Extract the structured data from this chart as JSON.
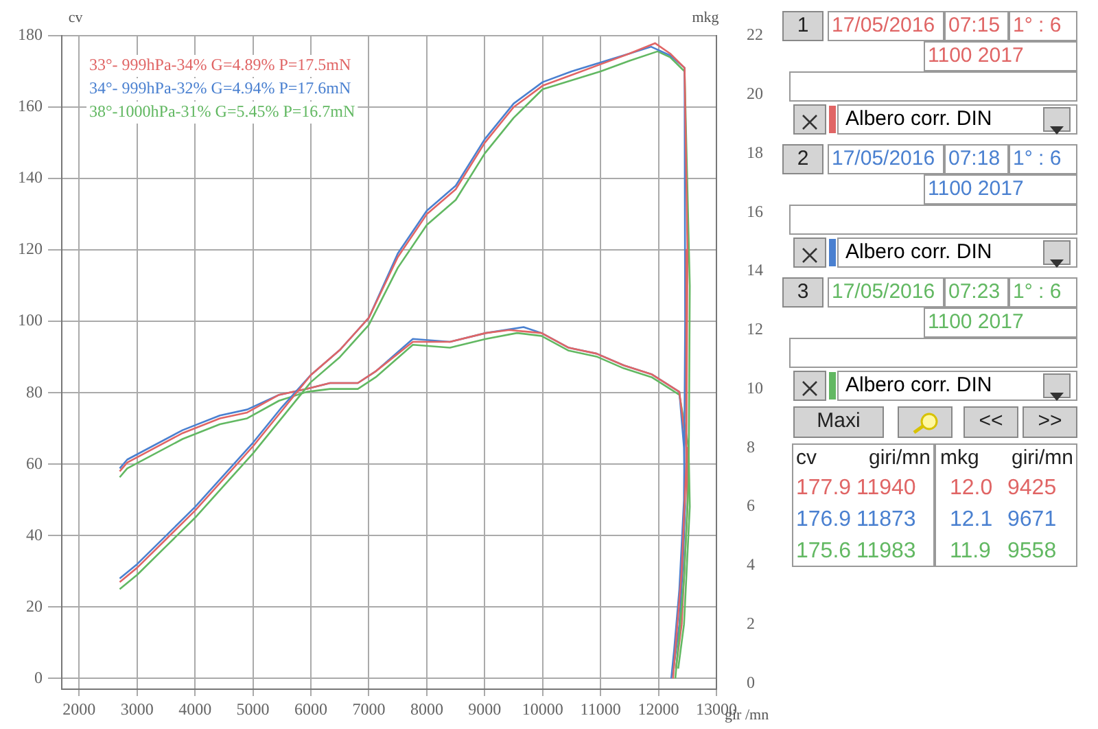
{
  "chart_data": {
    "type": "line",
    "xlabel": "gir /mn",
    "ylabel": "cv",
    "y2label": "mkg",
    "xlim": [
      1700,
      13000
    ],
    "xticks": [
      2000,
      3000,
      4000,
      5000,
      6000,
      7000,
      8000,
      9000,
      10000,
      11000,
      12000,
      13000
    ],
    "ylim": [
      -3,
      180
    ],
    "yticks": [
      0,
      20,
      40,
      60,
      80,
      100,
      120,
      140,
      160,
      180
    ],
    "y2lim": [
      -0.2,
      22
    ],
    "y2ticks": [
      0,
      2,
      4,
      6,
      8,
      10,
      12,
      14,
      16,
      18,
      20,
      22
    ],
    "grid": true,
    "legend": "top left",
    "marker": "none",
    "line_style": "solid",
    "series": [
      {
        "name": "33°- 999hPa-34% G=4.89% P=17.5mN",
        "color": "#e06565",
        "x": [
          2700,
          3000,
          3500,
          4000,
          4500,
          5000,
          5500,
          6000,
          6500,
          7000,
          7500,
          8000,
          8500,
          9000,
          9500,
          10000,
          10500,
          11000,
          11500,
          11940,
          12200,
          12450,
          12500,
          12480,
          12400,
          12300,
          12250
        ],
        "values": [
          27,
          31,
          39,
          47,
          56,
          65,
          75,
          85,
          92,
          101,
          118,
          130,
          137,
          150,
          160,
          166,
          169,
          172,
          175,
          177.9,
          175,
          171,
          120,
          60,
          30,
          10,
          0
        ]
      },
      {
        "name": "34°- 999hPa-32% G=4.94% P=17.6mN",
        "color": "#4a80d0",
        "x": [
          2700,
          3000,
          3500,
          4000,
          4500,
          5000,
          5500,
          6000,
          6500,
          7000,
          7500,
          8000,
          8500,
          9000,
          9500,
          10000,
          10500,
          11000,
          11500,
          11873,
          12200,
          12450,
          12460,
          12440,
          12360,
          12270,
          12220
        ],
        "values": [
          28,
          32,
          40,
          48,
          57,
          66,
          76,
          85,
          92,
          101,
          119,
          131,
          138,
          151,
          161,
          167,
          170,
          172.5,
          175,
          176.9,
          174.5,
          171,
          100,
          50,
          25,
          8,
          0
        ]
      },
      {
        "name": "38°-1000hPa-31% G=5.45% P=16.7mN",
        "color": "#62b862",
        "x": [
          2700,
          3000,
          3500,
          4000,
          4500,
          5000,
          5500,
          6000,
          6500,
          7000,
          7500,
          8000,
          8500,
          9000,
          9500,
          10000,
          10500,
          11000,
          11500,
          11983,
          12200,
          12450,
          12540,
          12520,
          12440,
          12340,
          12290
        ],
        "values": [
          25,
          29,
          37,
          45,
          54,
          63,
          73,
          83,
          90,
          99,
          115,
          127,
          134,
          147,
          157,
          165,
          167.5,
          170,
          173,
          175.6,
          174,
          170,
          110,
          55,
          28,
          9,
          0
        ]
      },
      {
        "color": "#e06565",
        "axis": "y2",
        "x": [
          2700,
          2830,
          3786,
          4430,
          4900,
          5450,
          5930,
          6330,
          6810,
          7120,
          7760,
          8400,
          9020,
          9425,
          9980,
          10450,
          10930,
          11400,
          11880,
          12360,
          12480,
          12500,
          12450,
          12400,
          12300
        ],
        "values": [
          7.2,
          7.5,
          8.5,
          9.0,
          9.2,
          9.8,
          10.0,
          10.2,
          10.2,
          10.6,
          11.6,
          11.6,
          11.9,
          12.0,
          11.9,
          11.4,
          11.2,
          10.8,
          10.5,
          9.9,
          8,
          6,
          4,
          2,
          0.5
        ]
      },
      {
        "color": "#4a80d0",
        "axis": "y2",
        "x": [
          2700,
          2830,
          3786,
          4430,
          4900,
          5450,
          5930,
          6330,
          6810,
          7120,
          7760,
          8400,
          9020,
          9671,
          9980,
          10450,
          10930,
          11400,
          11880,
          12360,
          12440,
          12460,
          12420,
          12360,
          12260
        ],
        "values": [
          7.3,
          7.6,
          8.6,
          9.1,
          9.3,
          9.8,
          10.0,
          10.2,
          10.2,
          10.6,
          11.7,
          11.6,
          11.9,
          12.1,
          11.9,
          11.4,
          11.2,
          10.8,
          10.5,
          9.9,
          8,
          6,
          4,
          2,
          0.5
        ]
      },
      {
        "color": "#62b862",
        "axis": "y2",
        "x": [
          2700,
          2830,
          3786,
          4430,
          4900,
          5450,
          5930,
          6330,
          6810,
          7120,
          7760,
          8400,
          9020,
          9558,
          9980,
          10450,
          10930,
          11400,
          11880,
          12360,
          12520,
          12540,
          12490,
          12440,
          12340
        ],
        "values": [
          7.0,
          7.3,
          8.3,
          8.8,
          9.0,
          9.6,
          9.9,
          10.0,
          10.0,
          10.4,
          11.5,
          11.4,
          11.7,
          11.9,
          11.8,
          11.3,
          11.1,
          10.7,
          10.4,
          9.8,
          8,
          6,
          4,
          2,
          0.5
        ]
      }
    ],
    "annotations": [
      "1",
      "17/05/2016",
      "07:15",
      "1° : 6",
      "1100 2017",
      "Albero corr. DIN",
      "2",
      "17/05/2016",
      "07:18",
      "1° : 6",
      "1100 2017",
      "Albero corr. DIN",
      "3",
      "17/05/2016",
      "07:23",
      "1° : 6",
      "1100 2017",
      "Albero corr. DIN",
      "Maxi",
      "<<",
      ">>",
      "cv",
      "giri/mn",
      "mkg",
      "giri/mn",
      "177.9",
      "11940",
      "12.0",
      "9425",
      "176.9",
      "11873",
      "12.1",
      "9671",
      "175.6",
      "11983",
      "11.9",
      "9558"
    ]
  }
}
